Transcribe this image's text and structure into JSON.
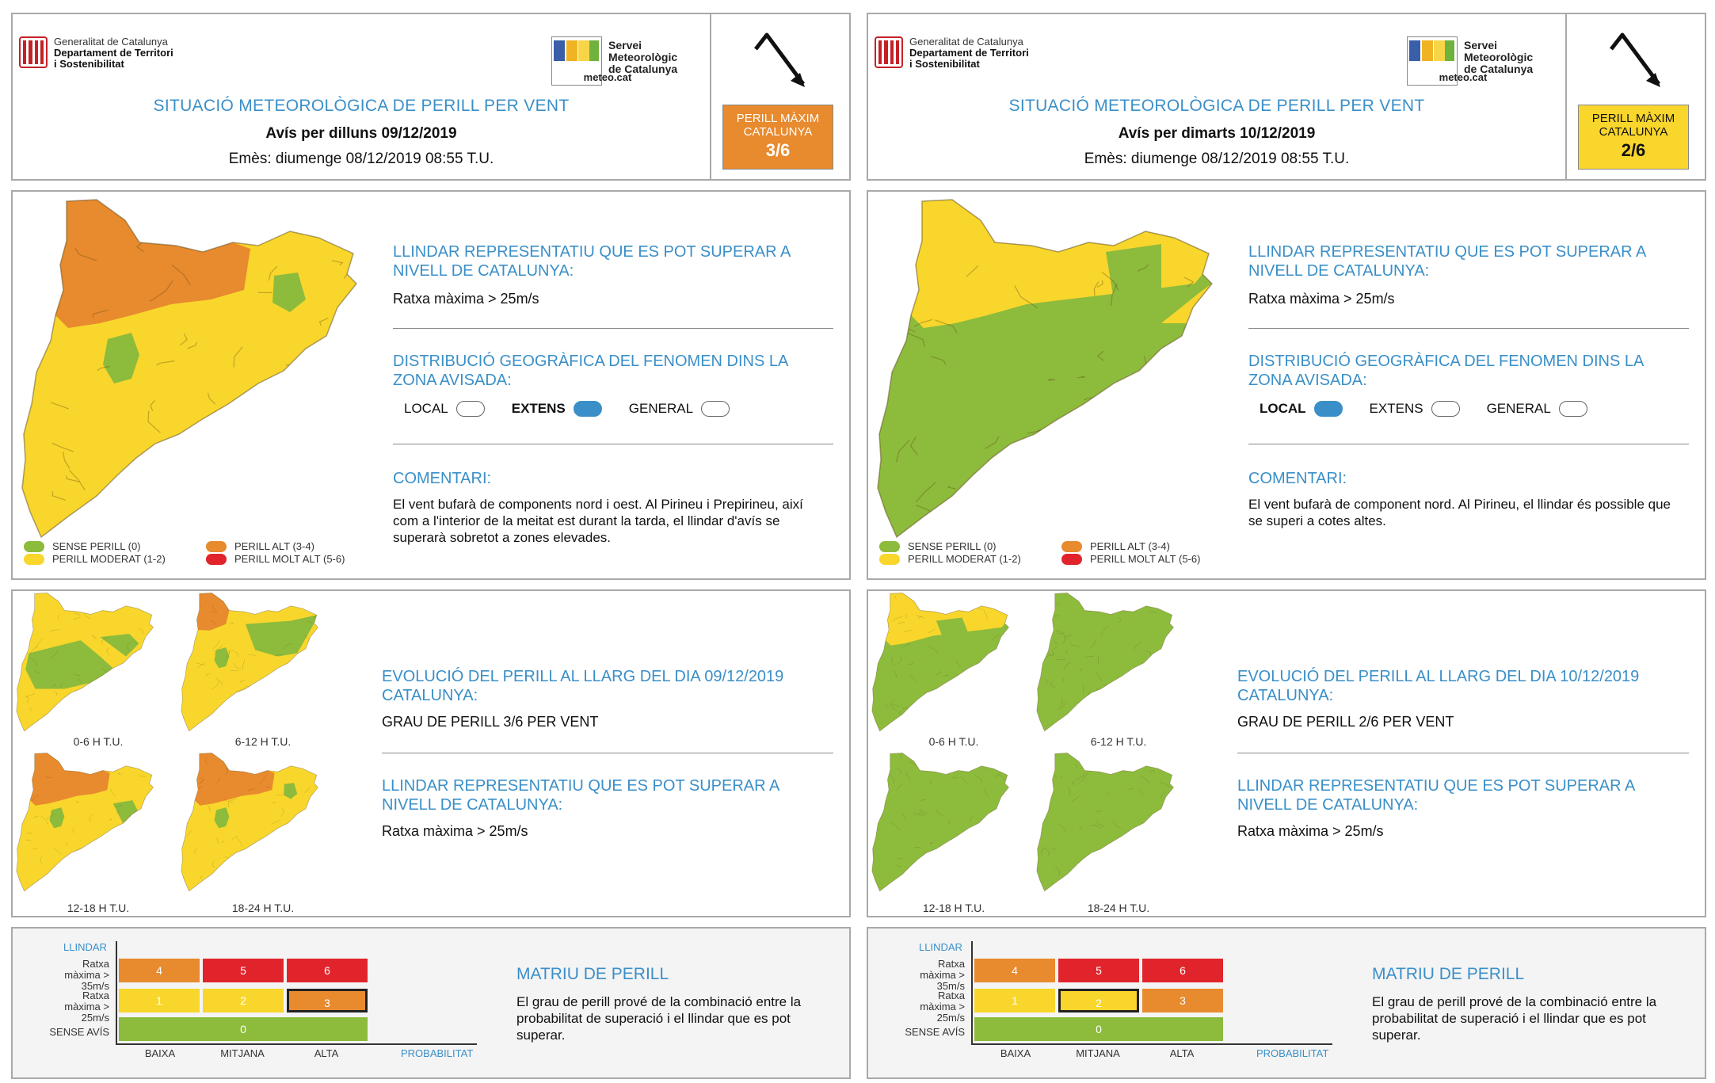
{
  "header": {
    "gencat_lines": [
      "Generalitat de Catalunya",
      "Departament de Territori",
      "i Sostenibilitat"
    ],
    "smc_caption": "meteo.cat",
    "smc_lines": [
      "Servei",
      "Meteorològic",
      "de Catalunya"
    ],
    "title": "SITUACIÓ METEOROLÒGICA DE PERILL PER VENT",
    "max_label_1": "PERILL MÀXIM",
    "max_label_2": "CATALUNYA"
  },
  "legend": {
    "sense": "SENSE PERILL (0)",
    "moderat": "PERILL MODERAT (1-2)",
    "alt": "PERILL ALT (3-4)",
    "molt_alt": "PERILL MOLT ALT (5-6)"
  },
  "colors": {
    "green": "#8dbb3c",
    "yellow": "#f9d62c",
    "orange": "#e88a2e",
    "red": "#e1242b",
    "blue": "#3a8fc8"
  },
  "labels": {
    "llindar_h": "LLINDAR REPRESENTATIU QUE ES POT SUPERAR A NIVELL DE CATALUNYA:",
    "llindar_t": "Ratxa màxima > 25m/s",
    "distrib_h": "DISTRIBUCIÓ GEOGRÀFICA DEL FENOMEN DINS LA ZONA AVISADA:",
    "local": "LOCAL",
    "extens": "EXTENS",
    "general": "GENERAL",
    "comentari_h": "COMENTARI:",
    "cap_0_6": "0-6 H T.U.",
    "cap_6_12": "6-12 H T.U.",
    "cap_12_18": "12-18 H T.U.",
    "cap_18_24": "18-24 H T.U.",
    "matriu_title": "MATRIU DE PERILL",
    "matriu_text": "El grau de perill prové de la combinació entre la probabilitat de superació i el llindar que es pot superar.",
    "m_llindar": "LLINDAR",
    "m_row1": "Ratxa màxima > 35m/s",
    "m_row2": "Ratxa màxima > 25m/s",
    "m_row3": "SENSE AVÍS",
    "m_baixa": "BAIXA",
    "m_mitjana": "MITJANA",
    "m_alta": "ALTA",
    "m_prob": "PROBABILITAT",
    "m_cells": [
      "4",
      "5",
      "6",
      "1",
      "2",
      "3",
      "0"
    ]
  },
  "panels": [
    {
      "date_line": "Avís per dilluns 09/12/2019",
      "emes_line": "Emès: diumenge 08/12/2019 08:55 T.U.",
      "max_level": "3/6",
      "max_color": "#e88a2e",
      "distribution": "EXTENS",
      "comment": "El vent bufarà de components nord i oest. Al Pirineu i Prepirineu, així com a l'interior de la meitat est durant la tarda, el llindar d'avís se superarà sobretot a zones elevades.",
      "evo_h": "EVOLUCIÓ DEL PERILL AL LLARG DEL DIA 09/12/2019 CATALUNYA:",
      "evo_t": "GRAU DE PERILL 3/6 PER VENT",
      "selected_cell": "3"
    },
    {
      "date_line": "Avís per dimarts 10/12/2019",
      "emes_line": "Emès: diumenge 08/12/2019 08:55 T.U.",
      "max_level": "2/6",
      "max_color": "#f9d62c",
      "distribution": "LOCAL",
      "comment": "El vent bufarà de component nord. Al Pirineu, el llindar és possible que se superi a cotes altes.",
      "evo_h": "EVOLUCIÓ DEL PERILL AL LLARG DEL DIA 10/12/2019 CATALUNYA:",
      "evo_t": "GRAU DE PERILL 2/6 PER VENT",
      "selected_cell": "2"
    }
  ]
}
